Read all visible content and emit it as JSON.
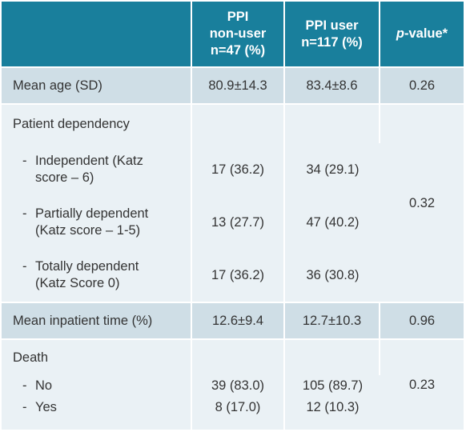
{
  "header": {
    "col_a": [
      "PPI",
      "non-user",
      "n=47 (%)"
    ],
    "col_b": [
      "PPI user",
      "n=117 (%)"
    ],
    "col_p_italic": "p",
    "col_p_rest": "-value*"
  },
  "rows": {
    "mean_age": {
      "label": "Mean age (SD)",
      "a": "80.9±14.3",
      "b": "83.4±8.6",
      "p": "0.26"
    },
    "dependency": {
      "label": "Patient dependency",
      "p": "0.32",
      "items": [
        {
          "dash": "-",
          "line1": "Independent (Katz",
          "line2": "score – 6)",
          "a": "17 (36.2)",
          "b": "34 (29.1)"
        },
        {
          "dash": "-",
          "line1": "Partially dependent",
          "line2": "(Katz score – 1-5)",
          "a": "13 (27.7)",
          "b": "47 (40.2)"
        },
        {
          "dash": "-",
          "line1": "Totally dependent",
          "line2": "(Katz Score 0)",
          "a": "17 (36.2)",
          "b": "36 (30.8)"
        }
      ]
    },
    "inpatient": {
      "label": "Mean inpatient time (%)",
      "a": "12.6±9.4",
      "b": "12.7±10.3",
      "p": "0.96"
    },
    "death": {
      "label": "Death",
      "p": "0.23",
      "items": [
        {
          "dash": "-",
          "label": "No",
          "a": "39 (83.0)",
          "b": "105 (89.7)"
        },
        {
          "dash": "-",
          "label": "Yes",
          "a": "8 (17.0)",
          "b": "12 (10.3)"
        }
      ]
    }
  },
  "colors": {
    "header_bg": "#197f9c",
    "dark_row": "#cfdee6",
    "light_row": "#eaf1f5"
  }
}
